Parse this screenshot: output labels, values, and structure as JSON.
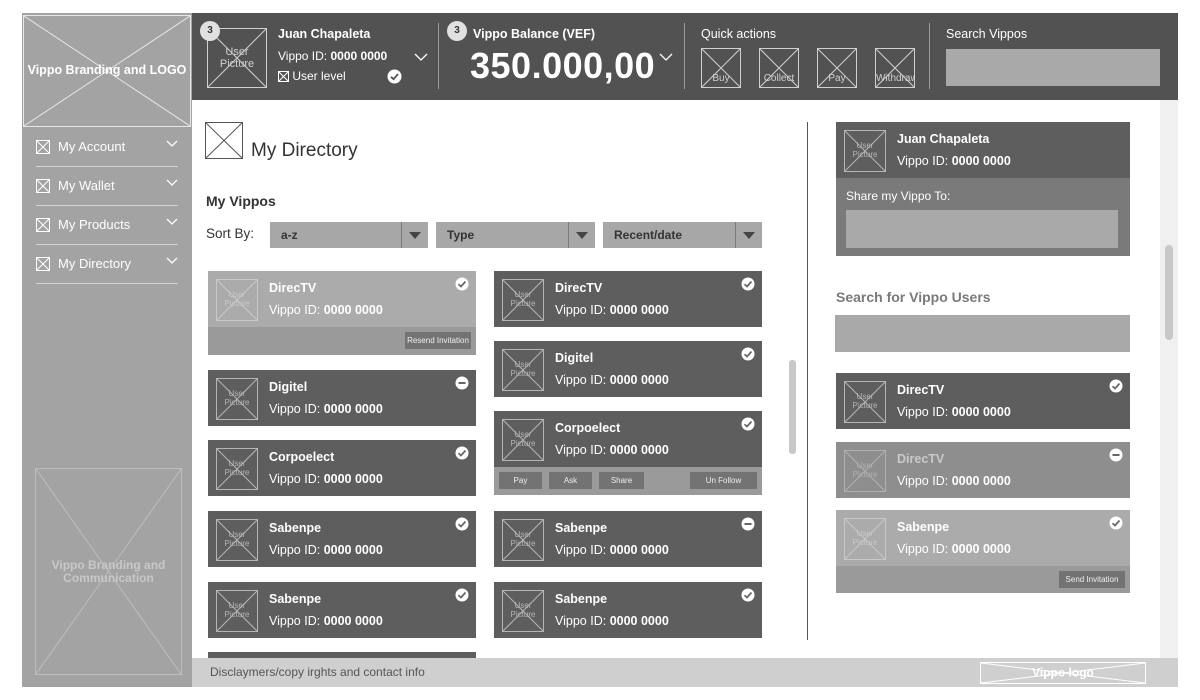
{
  "sidebar": {
    "logo_text": "Vippo Branding and LOGO",
    "items": [
      {
        "label": "My Account"
      },
      {
        "label": "My Wallet"
      },
      {
        "label": "My Products"
      },
      {
        "label": "My Directory"
      }
    ],
    "bottom_placeholder": "Vippo Branding and Communication"
  },
  "header": {
    "user_badge": "3",
    "user_picture_label": "User Picture",
    "user_name": "Juan Chapaleta",
    "vippo_id_label": "Vippo ID:",
    "vippo_id_value": "0000 0000",
    "user_level_label": "User level",
    "balance_badge": "3",
    "balance_label": "Vippo Balance (VEF)",
    "balance_value": "350.000,00",
    "quick_actions_label": "Quick actions",
    "quick_actions": [
      {
        "label": "Buy"
      },
      {
        "label": "Collect"
      },
      {
        "label": "Pay"
      },
      {
        "label": "Withdraw"
      }
    ],
    "search_label": "Search Vippos",
    "search_value": ""
  },
  "main": {
    "page_title": "My Directory",
    "section_title": "My Vippos",
    "sort_label": "Sort By:",
    "sort_options": [
      {
        "value": "a-z"
      },
      {
        "value": "Type"
      },
      {
        "value": "Recent/date"
      }
    ],
    "picture_label": "User Picture",
    "id_label": "Vippo ID:",
    "left_cards": [
      {
        "name": "DirecTV",
        "id": "0000 0000",
        "status": "check",
        "action": "Resend Invitation"
      },
      {
        "name": "Digitel",
        "id": "0000 0000",
        "status": "minus"
      },
      {
        "name": "Corpoelect",
        "id": "0000 0000",
        "status": "check"
      },
      {
        "name": "Sabenpe",
        "id": "0000 0000",
        "status": "check"
      },
      {
        "name": "Sabenpe",
        "id": "0000 0000",
        "status": "check"
      }
    ],
    "right_cards": [
      {
        "name": "DirecTV",
        "id": "0000 0000",
        "status": "check"
      },
      {
        "name": "Digitel",
        "id": "0000 0000",
        "status": "check"
      },
      {
        "name": "Corpoelect",
        "id": "0000 0000",
        "status": "check",
        "actions": [
          "Pay",
          "Ask",
          "Share",
          "Un Follow"
        ]
      },
      {
        "name": "Sabenpe",
        "id": "0000 0000",
        "status": "minus"
      },
      {
        "name": "Sabenpe",
        "id": "0000 0000",
        "status": "check"
      }
    ]
  },
  "right_panel": {
    "profile_name": "Juan Chapaleta",
    "profile_id": "0000 0000",
    "share_label": "Share my Vippo To:",
    "share_value": "",
    "search_title": "Search for Vippo Users",
    "search_value": "",
    "results": [
      {
        "name": "DirecTV",
        "id": "0000 0000",
        "status": "check"
      },
      {
        "name": "DirecTV",
        "id": "0000 0000",
        "status": "minus"
      },
      {
        "name": "Sabenpe",
        "id": "0000 0000",
        "status": "check",
        "action": "Send Invitation"
      }
    ]
  },
  "footer": {
    "text": "Disclaymers/copy irghts and contact info",
    "logo_text": "Vippo logo"
  }
}
